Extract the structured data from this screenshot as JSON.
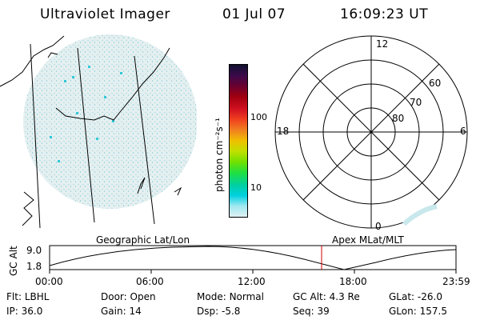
{
  "header": {
    "instrument": "Ultraviolet Imager",
    "date": "01 Jul 07",
    "time": "16:09:23 UT"
  },
  "colorbar": {
    "label": "photon cm⁻²s⁻¹",
    "ticks": [
      "100",
      "10"
    ],
    "colors": [
      "#101030",
      "#3a0a4a",
      "#6a0030",
      "#a00010",
      "#d01020",
      "#f04020",
      "#f08020",
      "#f0c000",
      "#c0e000",
      "#70e000",
      "#20e040",
      "#00d0a0",
      "#00d0e0",
      "#a0e8f0",
      "#e0f0f4"
    ]
  },
  "polar_plot": {
    "mlt_labels": {
      "top": "12",
      "left": "18",
      "right": "6",
      "bottom": "0"
    },
    "lat_labels": [
      "60",
      "70",
      "80"
    ]
  },
  "left_map_label": "Geographic Lat/Lon",
  "right_map_label": "Apex MLat/MLT",
  "altitude_plot": {
    "y_axis_label": "GC Alt",
    "y_ticks": [
      "9.0",
      "1.8"
    ],
    "x_ticks": [
      "00:00",
      "06:00",
      "12:00",
      "18:00",
      "23:59"
    ],
    "marker_color": "#cc0000"
  },
  "footer": {
    "row1": [
      {
        "label": "Flt:",
        "value": "LBHL"
      },
      {
        "label": "Door:",
        "value": "Open"
      },
      {
        "label": "Mode:",
        "value": "Normal"
      },
      {
        "label": "GC Alt:",
        "value": "4.3 Re"
      },
      {
        "label": "GLat:",
        "value": "-26.0"
      }
    ],
    "row2": [
      {
        "label": "IP:",
        "value": "36.0"
      },
      {
        "label": "Gain:",
        "value": "14"
      },
      {
        "label": "Dsp:",
        "value": "-5.8"
      },
      {
        "label": "Seq:",
        "value": "39"
      },
      {
        "label": "GLon:",
        "value": "157.5"
      }
    ]
  }
}
